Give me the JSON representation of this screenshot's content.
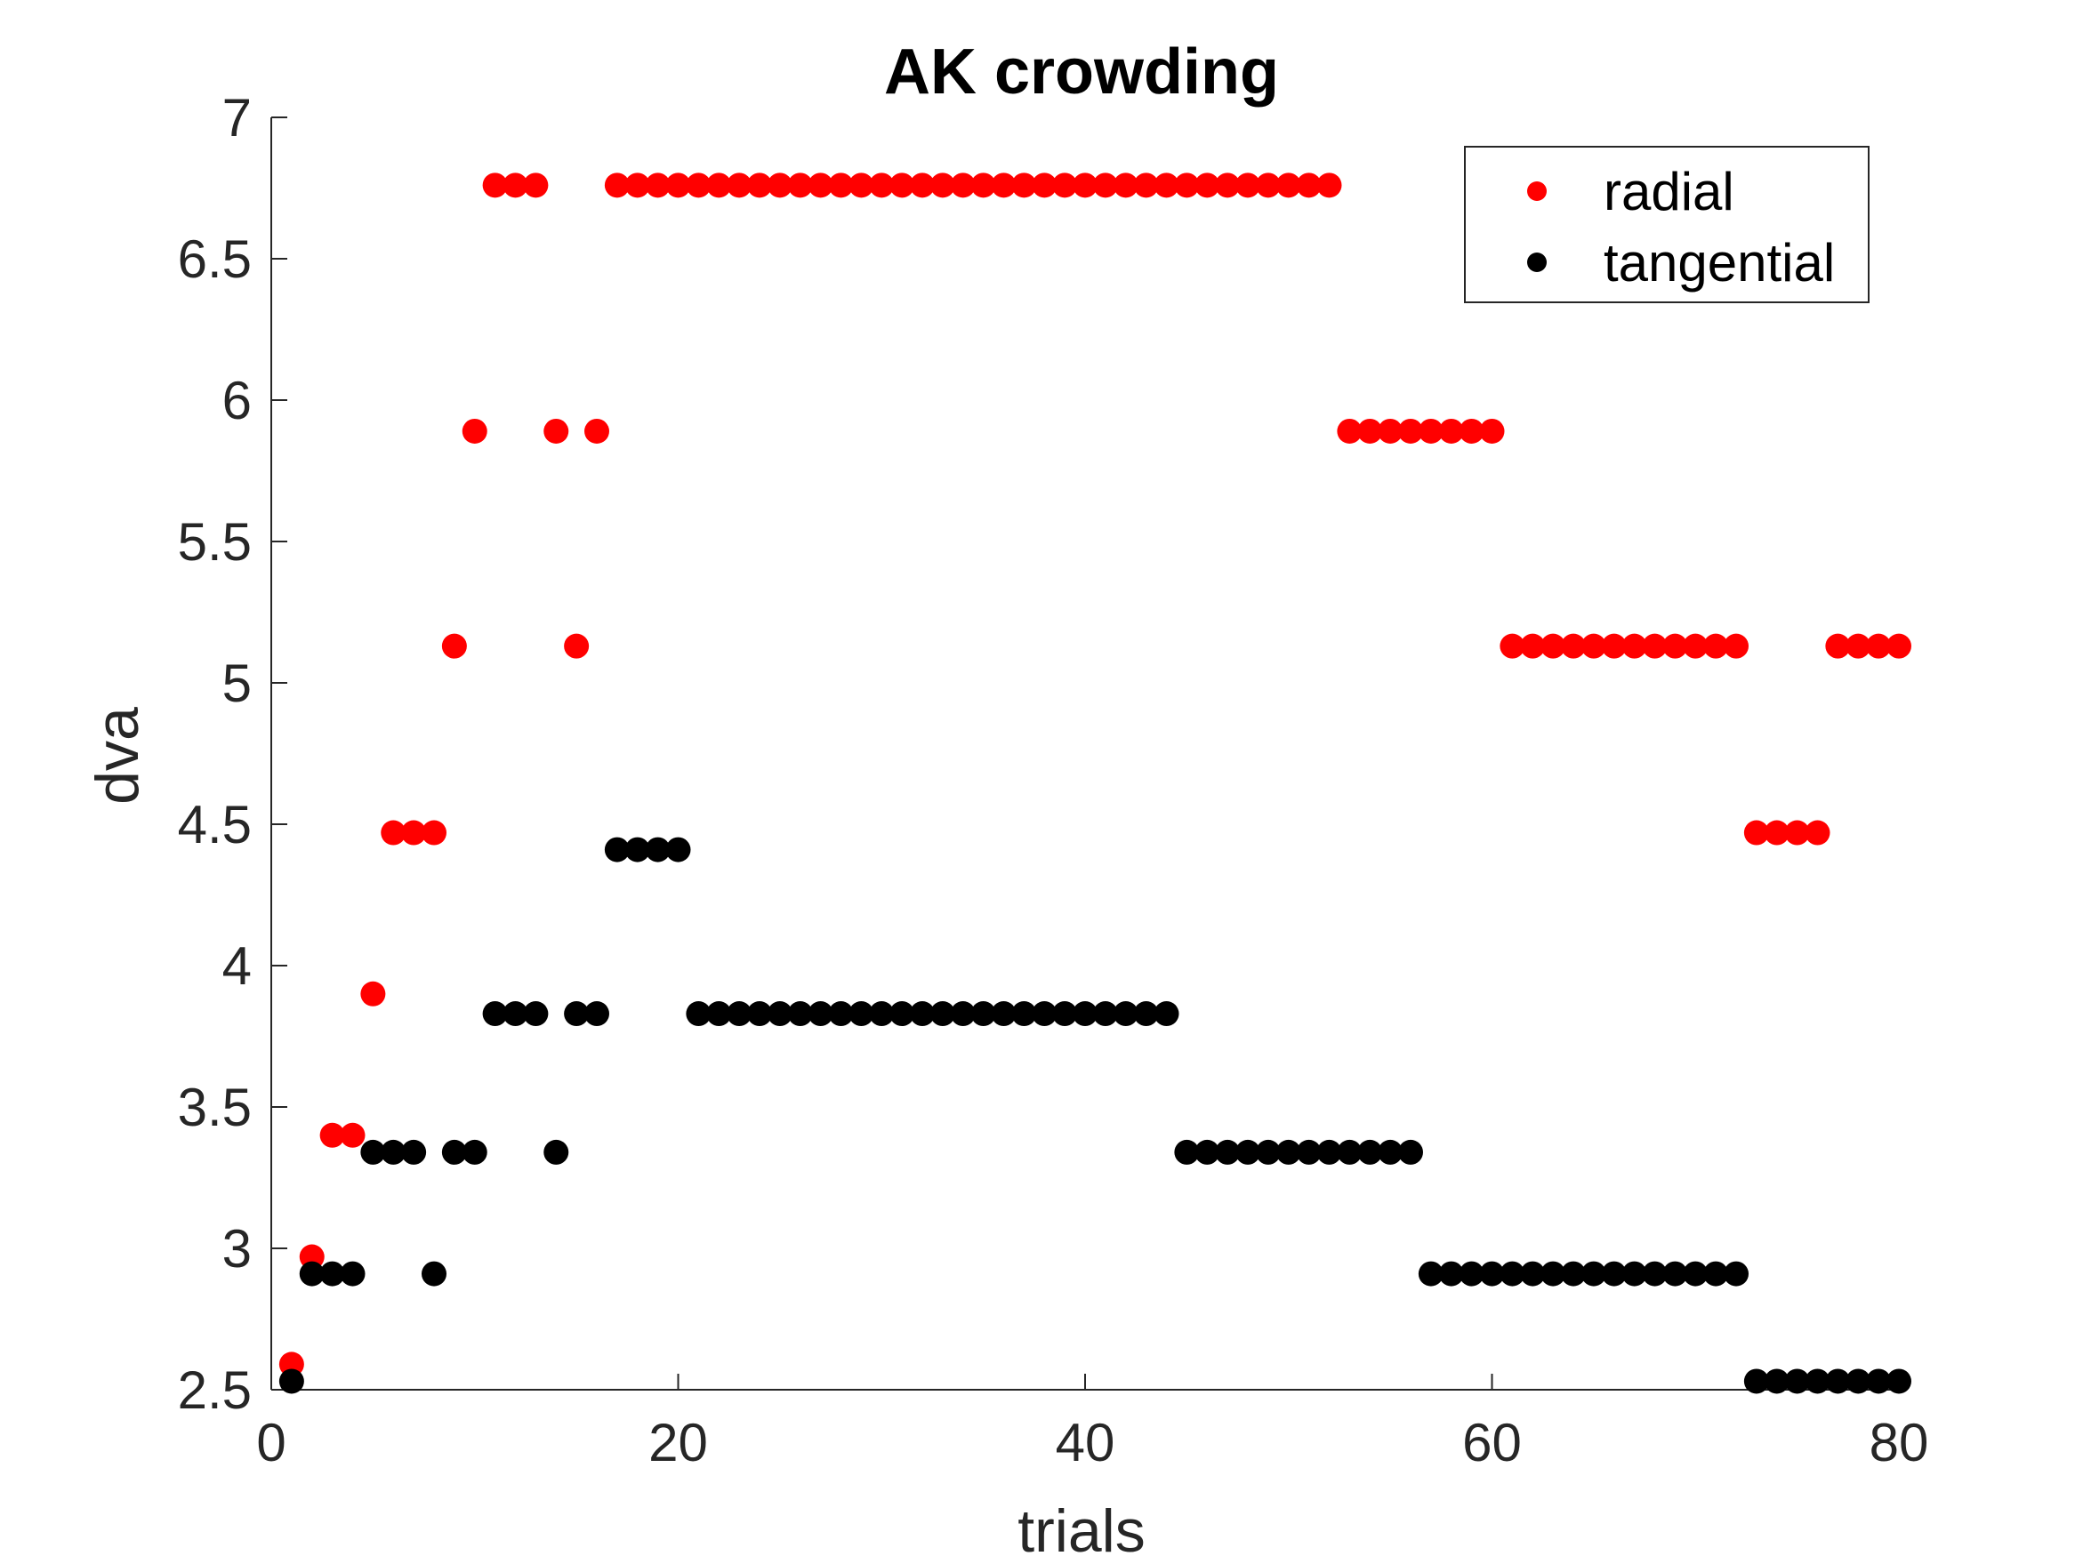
{
  "chart_data": {
    "type": "scatter",
    "title": "AK crowding",
    "xlabel": "trials",
    "ylabel": "dva",
    "xlim": [
      0,
      80
    ],
    "ylim": [
      2.5,
      7
    ],
    "xticks": [
      0,
      20,
      40,
      60,
      80
    ],
    "yticks": [
      2.5,
      3,
      3.5,
      4,
      4.5,
      5,
      5.5,
      6,
      6.5,
      7
    ],
    "grid": false,
    "legend_position": "top-right",
    "series": [
      {
        "name": "radial",
        "color": "#ff0000",
        "x": [
          1,
          2,
          3,
          4,
          5,
          6,
          7,
          8,
          9,
          10,
          11,
          12,
          13,
          14,
          15,
          16,
          17,
          18,
          19,
          20,
          21,
          22,
          23,
          24,
          25,
          26,
          27,
          28,
          29,
          30,
          31,
          32,
          33,
          34,
          35,
          36,
          37,
          38,
          39,
          40,
          41,
          42,
          43,
          44,
          45,
          46,
          47,
          48,
          49,
          50,
          51,
          52,
          53,
          54,
          55,
          56,
          57,
          58,
          59,
          60,
          61,
          62,
          63,
          64,
          65,
          66,
          67,
          68,
          69,
          70,
          71,
          72,
          73,
          74,
          75,
          76,
          77,
          78,
          79,
          80
        ],
        "y": [
          2.59,
          2.97,
          3.4,
          3.4,
          3.9,
          4.47,
          4.47,
          4.47,
          5.13,
          5.89,
          6.76,
          6.76,
          6.76,
          5.89,
          5.13,
          5.89,
          6.76,
          6.76,
          6.76,
          6.76,
          6.76,
          6.76,
          6.76,
          6.76,
          6.76,
          6.76,
          6.76,
          6.76,
          6.76,
          6.76,
          6.76,
          6.76,
          6.76,
          6.76,
          6.76,
          6.76,
          6.76,
          6.76,
          6.76,
          6.76,
          6.76,
          6.76,
          6.76,
          6.76,
          6.76,
          6.76,
          6.76,
          6.76,
          6.76,
          6.76,
          6.76,
          6.76,
          5.89,
          5.89,
          5.89,
          5.89,
          5.89,
          5.89,
          5.89,
          5.89,
          5.13,
          5.13,
          5.13,
          5.13,
          5.13,
          5.13,
          5.13,
          5.13,
          5.13,
          5.13,
          5.13,
          5.13,
          4.47,
          4.47,
          4.47,
          4.47,
          5.13,
          5.13,
          5.13,
          5.13
        ]
      },
      {
        "name": "tangential",
        "color": "#000000",
        "x": [
          1,
          2,
          3,
          4,
          5,
          6,
          7,
          8,
          9,
          10,
          11,
          12,
          13,
          14,
          15,
          16,
          17,
          18,
          19,
          20,
          21,
          22,
          23,
          24,
          25,
          26,
          27,
          28,
          29,
          30,
          31,
          32,
          33,
          34,
          35,
          36,
          37,
          38,
          39,
          40,
          41,
          42,
          43,
          44,
          45,
          46,
          47,
          48,
          49,
          50,
          51,
          52,
          53,
          54,
          55,
          56,
          57,
          58,
          59,
          60,
          61,
          62,
          63,
          64,
          65,
          66,
          67,
          68,
          69,
          70,
          71,
          72,
          73,
          74,
          75,
          76,
          77,
          78,
          79,
          80
        ],
        "y": [
          2.53,
          2.91,
          2.91,
          2.91,
          3.34,
          3.34,
          3.34,
          2.91,
          3.34,
          3.34,
          3.83,
          3.83,
          3.83,
          3.34,
          3.83,
          3.83,
          4.41,
          4.41,
          4.41,
          4.41,
          3.83,
          3.83,
          3.83,
          3.83,
          3.83,
          3.83,
          3.83,
          3.83,
          3.83,
          3.83,
          3.83,
          3.83,
          3.83,
          3.83,
          3.83,
          3.83,
          3.83,
          3.83,
          3.83,
          3.83,
          3.83,
          3.83,
          3.83,
          3.83,
          3.34,
          3.34,
          3.34,
          3.34,
          3.34,
          3.34,
          3.34,
          3.34,
          3.34,
          3.34,
          3.34,
          3.34,
          2.91,
          2.91,
          2.91,
          2.91,
          2.91,
          2.91,
          2.91,
          2.91,
          2.91,
          2.91,
          2.91,
          2.91,
          2.91,
          2.91,
          2.91,
          2.91,
          2.53,
          2.53,
          2.53,
          2.53,
          2.53,
          2.53,
          2.53,
          2.53
        ]
      }
    ]
  }
}
